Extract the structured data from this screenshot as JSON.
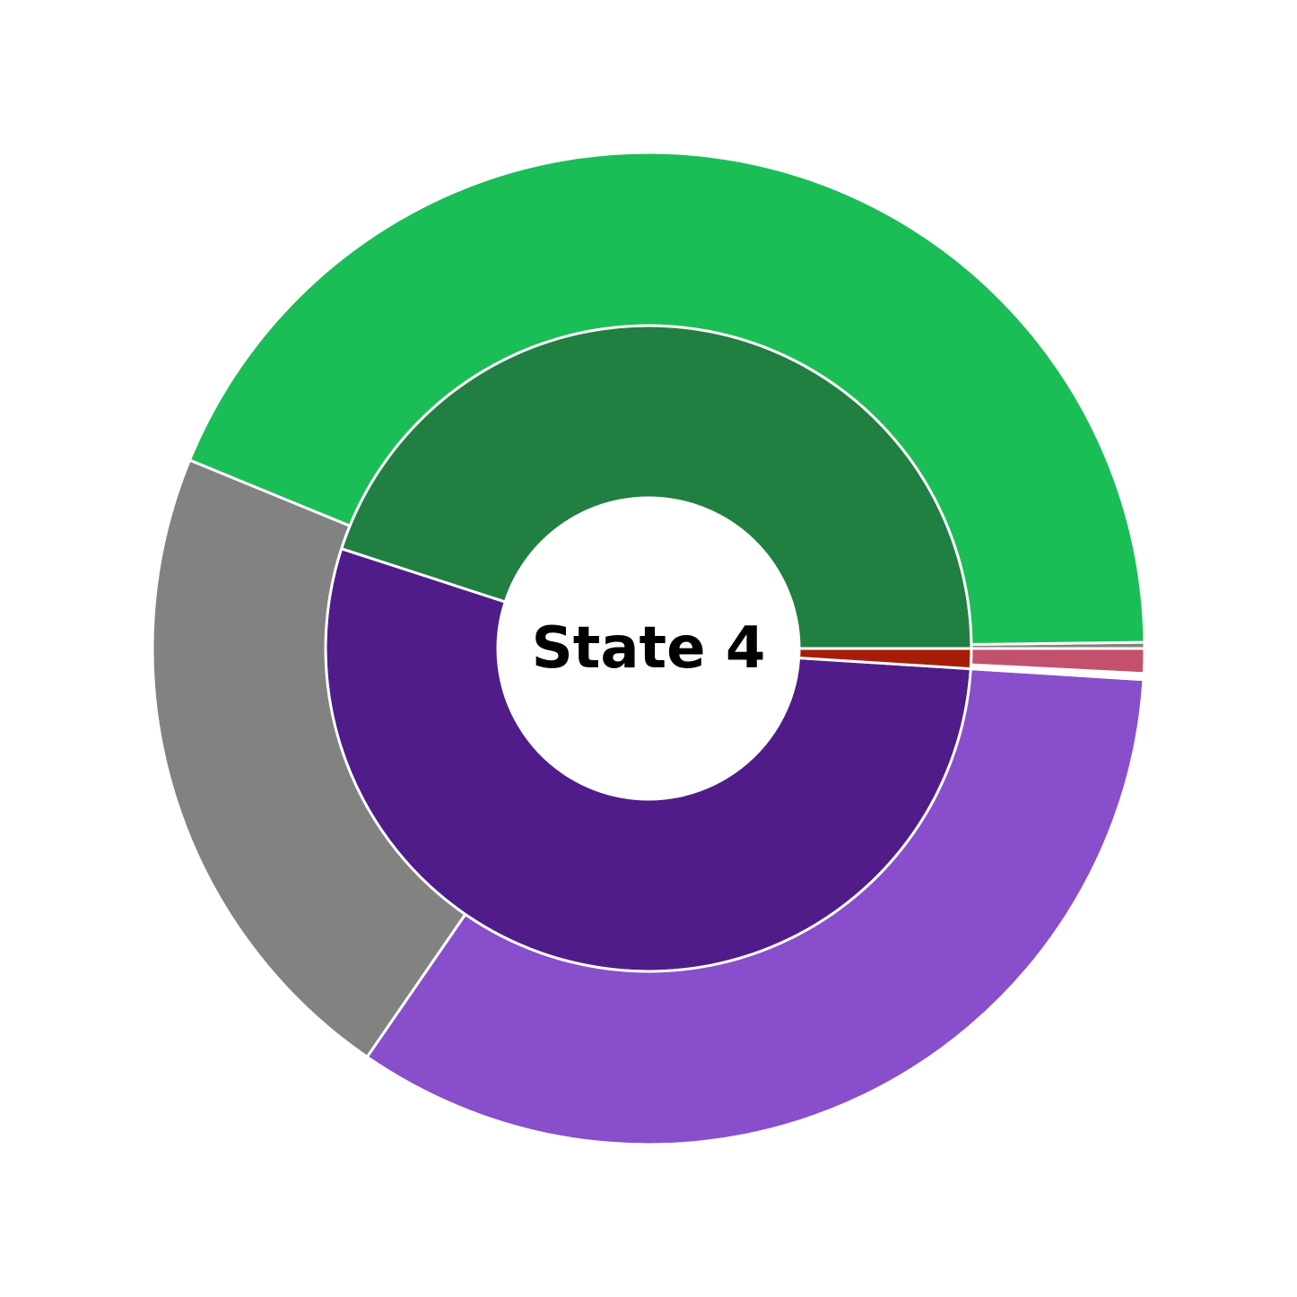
{
  "chart_data": {
    "type": "sunburst",
    "center_label": "State 4",
    "start_angle_deg": 0,
    "direction": "counterclockwise",
    "edge_color": "#ffffff",
    "inner_ring": [
      {
        "value": 45.0,
        "color": "#217f42"
      },
      {
        "value": 54.0,
        "color": "#501c8a"
      },
      {
        "value": 1.0,
        "color": "#a61e0a"
      }
    ],
    "outer_ring": [
      {
        "value": 0.2,
        "color": "#828282"
      },
      {
        "value": 43.6,
        "color": "#1bbd57"
      },
      {
        "value": 21.6,
        "color": "#828282"
      },
      {
        "value": 33.6,
        "color": "#884ecb"
      },
      {
        "value": 0.2,
        "color": "#ffffff"
      },
      {
        "value": 0.8,
        "color": "#c3506d"
      }
    ]
  }
}
